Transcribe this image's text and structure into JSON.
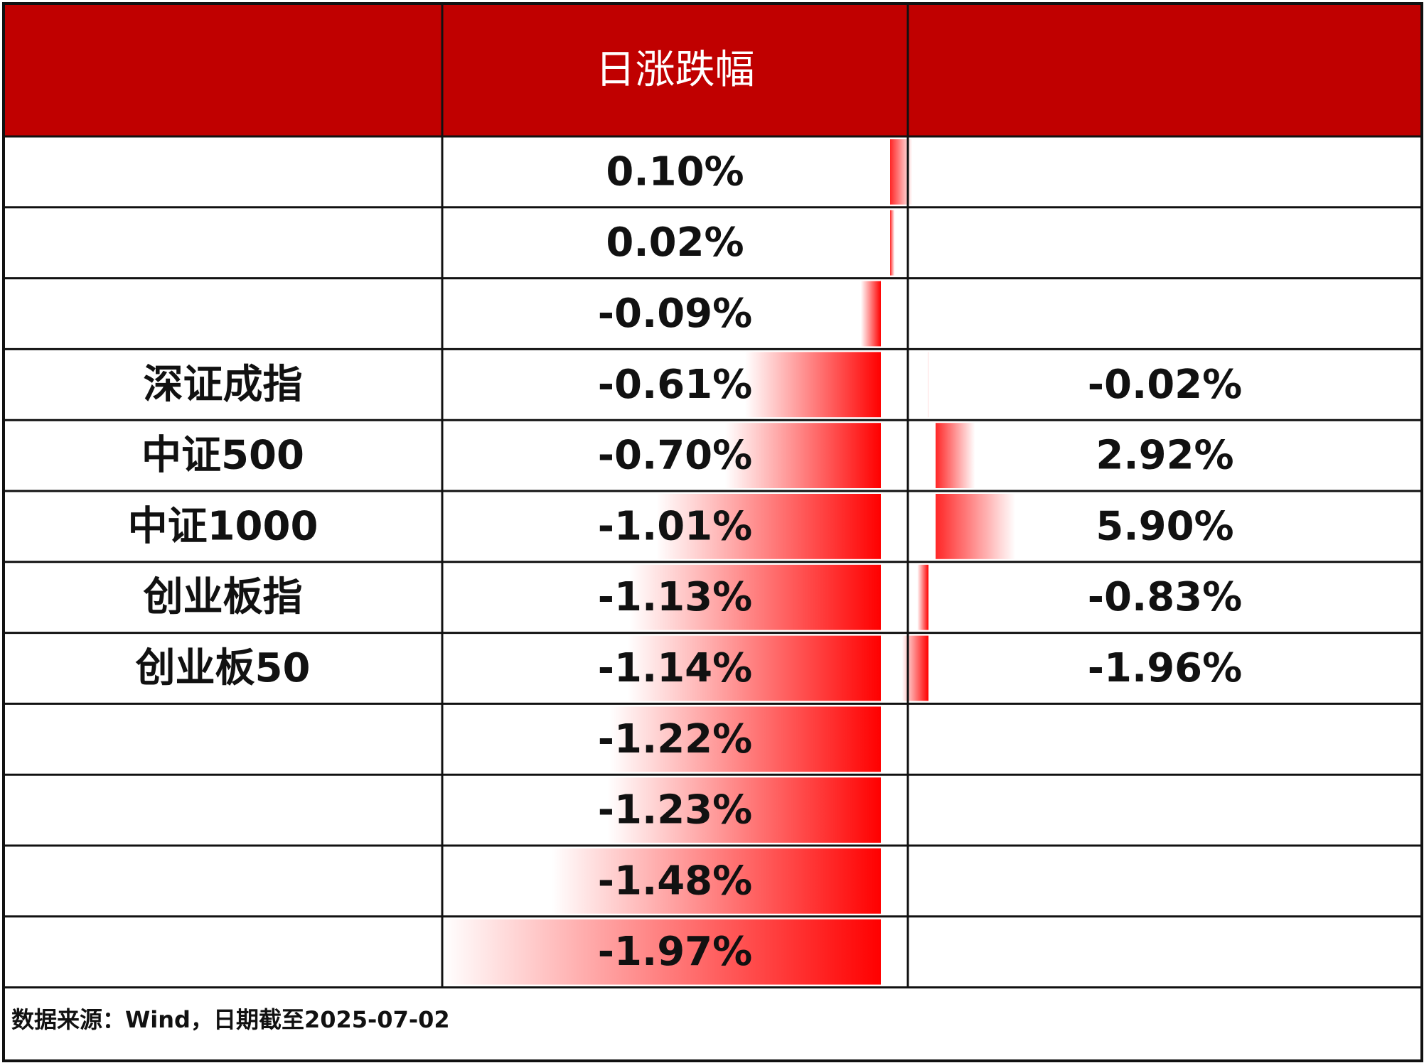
{
  "table": {
    "header": [
      null,
      "日涨跌幅",
      null
    ],
    "rows": [
      {
        "name": null,
        "day": {
          "value": 0.1,
          "label": "0.10%"
        },
        "other": null
      },
      {
        "name": null,
        "day": {
          "value": 0.02,
          "label": "0.02%"
        },
        "other": null
      },
      {
        "name": null,
        "day": {
          "value": -0.09,
          "label": "-0.09%"
        },
        "other": null
      },
      {
        "name": "深证成指",
        "day": {
          "value": -0.61,
          "label": "-0.61%"
        },
        "other": {
          "value": -0.02,
          "label": "-0.02%"
        }
      },
      {
        "name": "中证500",
        "day": {
          "value": -0.7,
          "label": "-0.70%"
        },
        "other": {
          "value": 2.92,
          "label": "2.92%"
        }
      },
      {
        "name": "中证1000",
        "day": {
          "value": -1.01,
          "label": "-1.01%"
        },
        "other": {
          "value": 5.9,
          "label": "5.90%"
        }
      },
      {
        "name": "创业板指",
        "day": {
          "value": -1.13,
          "label": "-1.13%"
        },
        "other": {
          "value": -0.83,
          "label": "-0.83%"
        }
      },
      {
        "name": "创业板50",
        "day": {
          "value": -1.14,
          "label": "-1.14%"
        },
        "other": {
          "value": -1.96,
          "label": "-1.96%"
        }
      },
      {
        "name": null,
        "day": {
          "value": -1.22,
          "label": "-1.22%"
        },
        "other": null
      },
      {
        "name": null,
        "day": {
          "value": -1.23,
          "label": "-1.23%"
        },
        "other": null
      },
      {
        "name": null,
        "day": {
          "value": -1.48,
          "label": "-1.48%"
        },
        "other": null
      },
      {
        "name": null,
        "day": {
          "value": -1.97,
          "label": "-1.97%"
        },
        "other": null
      }
    ]
  },
  "source": "数据来源：Wind，日期截至2025-07-02"
}
